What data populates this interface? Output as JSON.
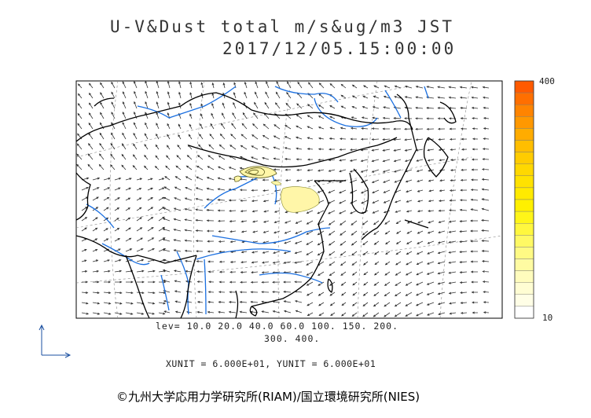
{
  "title_line1": "U-V&Dust total m/s&ug/m3 JST",
  "title_line2": "2017/12/05.15:00:00",
  "levels_line1": "lev= 10.0 20.0 40.0 60.0 100. 150. 200.",
  "levels_line2": "300. 400.",
  "units_line": "XUNIT = 6.000E+01, YUNIT = 6.000E+01",
  "credit": "©九州大学応用力学研究所(RIAM)/国立環境研究所(NIES)",
  "colorbar": {
    "max_label": "400",
    "min_label": "10",
    "colors": [
      "#ff5a00",
      "#ff6f00",
      "#ff8400",
      "#ff9800",
      "#ffac00",
      "#ffbe00",
      "#ffcc00",
      "#ffd800",
      "#ffe200",
      "#ffea00",
      "#fff000",
      "#fff518",
      "#fff73e",
      "#fff964",
      "#fffa84",
      "#fffba2",
      "#fffcbd",
      "#fffdd3",
      "#fffee6",
      "#ffffff"
    ]
  },
  "colors": {
    "coast": "#000000",
    "river": "#1a6fe0",
    "dust_fill": "#fff6a8",
    "dust_contour": "#5a5a1a",
    "wind_arrow": "#333333"
  },
  "wind_field": {
    "type": "vector arrows",
    "note_ref": "u-v wind"
  }
}
